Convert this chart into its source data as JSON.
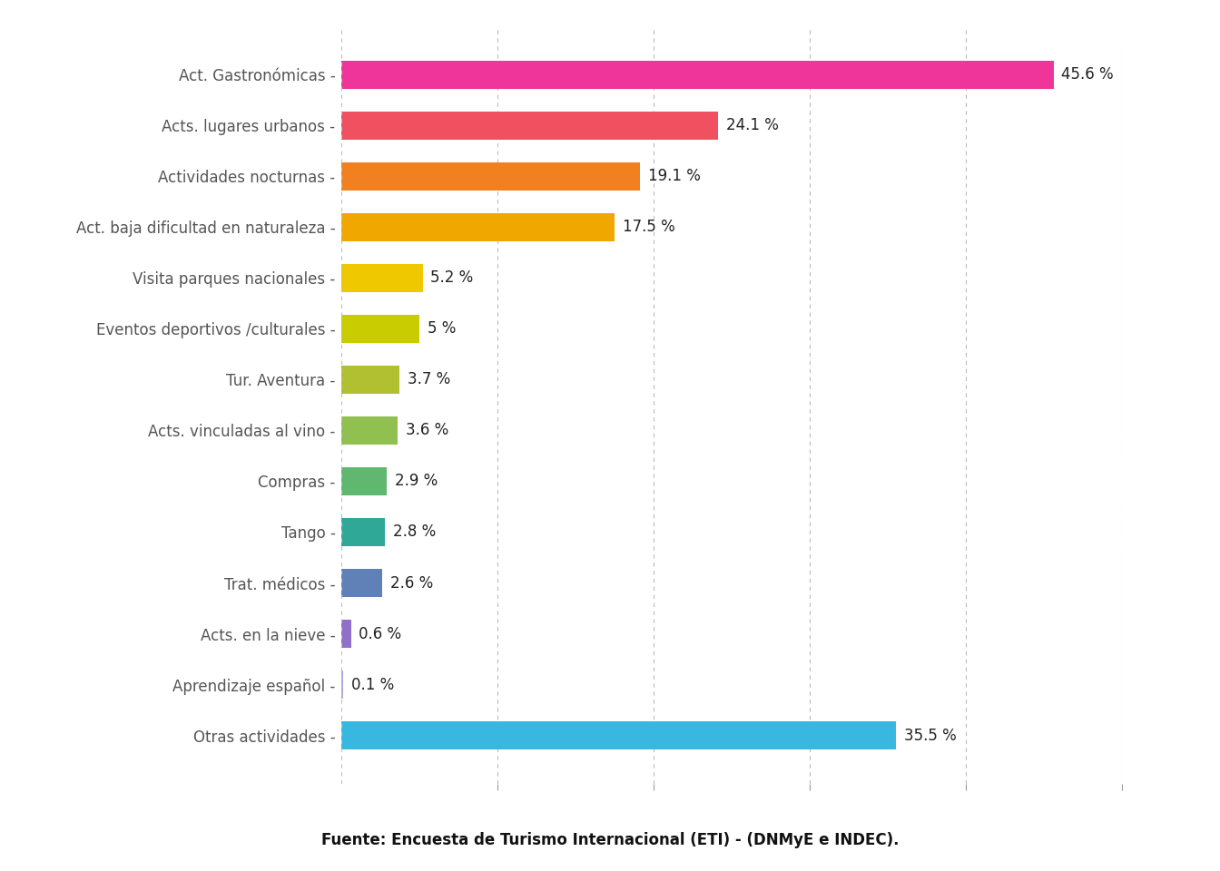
{
  "categories": [
    "Act. Gastronómicas",
    "Acts. lugares urbanos",
    "Actividades nocturnas",
    "Act. baja dificultad en naturaleza",
    "Visita parques nacionales",
    "Eventos deportivos /culturales",
    "Tur. Aventura",
    "Acts. vinculadas al vino",
    "Compras",
    "Tango",
    "Trat. médicos",
    "Acts. en la nieve",
    "Aprendizaje español",
    "Otras actividades"
  ],
  "values": [
    45.6,
    24.1,
    19.1,
    17.5,
    5.2,
    5.0,
    3.7,
    3.6,
    2.9,
    2.8,
    2.6,
    0.6,
    0.1,
    35.5
  ],
  "bar_colors": [
    "#f0359a",
    "#f05060",
    "#f08020",
    "#f0a800",
    "#f0c800",
    "#c8cc00",
    "#b0c030",
    "#90c050",
    "#60b870",
    "#30a898",
    "#6080b8",
    "#9070c8",
    "#38b8e0",
    "#38b8e0"
  ],
  "labels": [
    "45.6 %",
    "24.1 %",
    "19.1 %",
    "17.5 %",
    "5.2 %",
    "5 %",
    "3.7 %",
    "3.6 %",
    "2.9 %",
    "2.8 %",
    "2.6 %",
    "0.6 %",
    "0.1 %",
    "35.5 %"
  ],
  "xlim": [
    0,
    50
  ],
  "background_color": "#ffffff",
  "grid_color": "#bbbbbb",
  "source_text": "Fuente: Encuesta de Turismo Internacional (ETI) - (DNMyE e INDEC).",
  "tick_positions": [
    10,
    20,
    30,
    40,
    50
  ]
}
